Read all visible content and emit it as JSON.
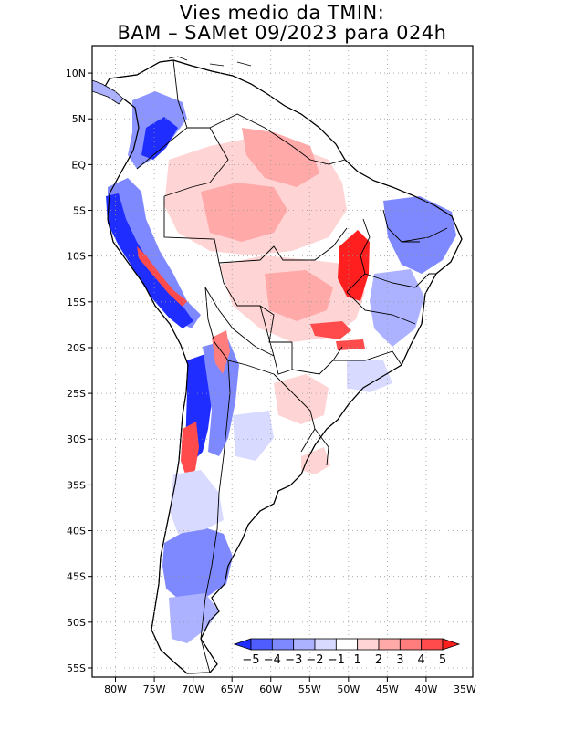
{
  "title": {
    "line1": "Vies medio da TMIN:",
    "line2": "BAM – SAMet 09/2023  para 024h"
  },
  "axes": {
    "lon_labels": [
      "80W",
      "75W",
      "70W",
      "65W",
      "60W",
      "55W",
      "50W",
      "45W",
      "40W",
      "35W"
    ],
    "lat_labels": [
      "10N",
      "5N",
      "EQ",
      "5S",
      "10S",
      "15S",
      "20S",
      "25S",
      "30S",
      "35S",
      "40S",
      "45S",
      "50S",
      "55S"
    ],
    "lon_range": [
      -83,
      -34
    ],
    "lat_range": [
      -56,
      13
    ],
    "grid": "dotted"
  },
  "colorbar": {
    "labels": [
      "−5",
      "−4",
      "−3",
      "−2",
      "−1",
      "1",
      "2",
      "3",
      "4",
      "5"
    ],
    "colors": [
      "#1f2dff",
      "#4f5dff",
      "#7f89ff",
      "#acb2ff",
      "#d8dbff",
      "#ffffff",
      "#ffd4d4",
      "#ffa9a9",
      "#ff7d7d",
      "#ff4b4b",
      "#ff1f1f"
    ]
  },
  "colors": {
    "strong_cold": "#1f2dff",
    "cold": "#7f89ff",
    "weak_cold": "#d8dbff",
    "weak_warm": "#ffd4d4",
    "warm": "#ff7d7d",
    "strong_warm": "#ff1f1f"
  }
}
